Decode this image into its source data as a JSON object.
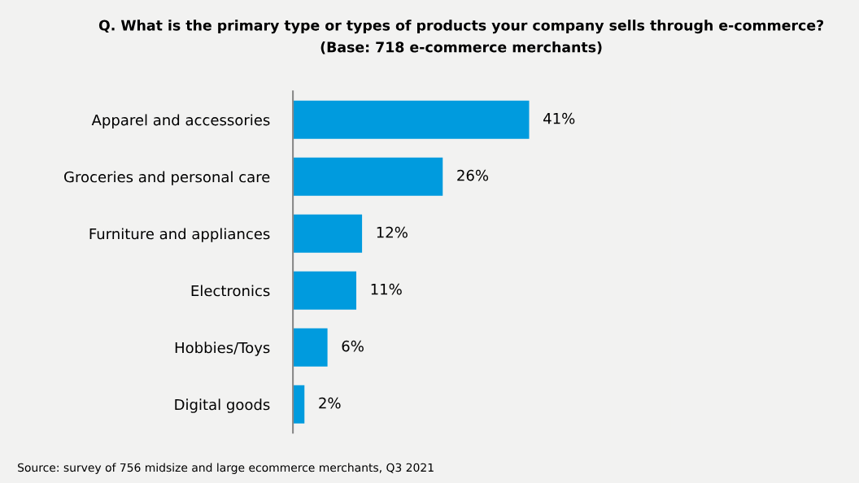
{
  "chart_data": {
    "type": "bar",
    "orientation": "horizontal",
    "title": "Q. What is the primary type or types of products your company sells through e-commerce?",
    "subtitle": "(Base: 718 e-commerce merchants)",
    "categories": [
      "Apparel and accessories",
      "Groceries and personal care",
      "Furniture and appliances",
      "Electronics",
      "Hobbies/Toys",
      "Digital goods"
    ],
    "values": [
      41,
      26,
      12,
      11,
      6,
      2
    ],
    "value_labels": [
      "41%",
      "26%",
      "12%",
      "11%",
      "6%",
      "2%"
    ],
    "color": "#009bde",
    "grid": false,
    "legend": false,
    "annotations": [
      "Source: survey of 756 midsize and large ecommerce merchants, Q3 2021"
    ]
  }
}
